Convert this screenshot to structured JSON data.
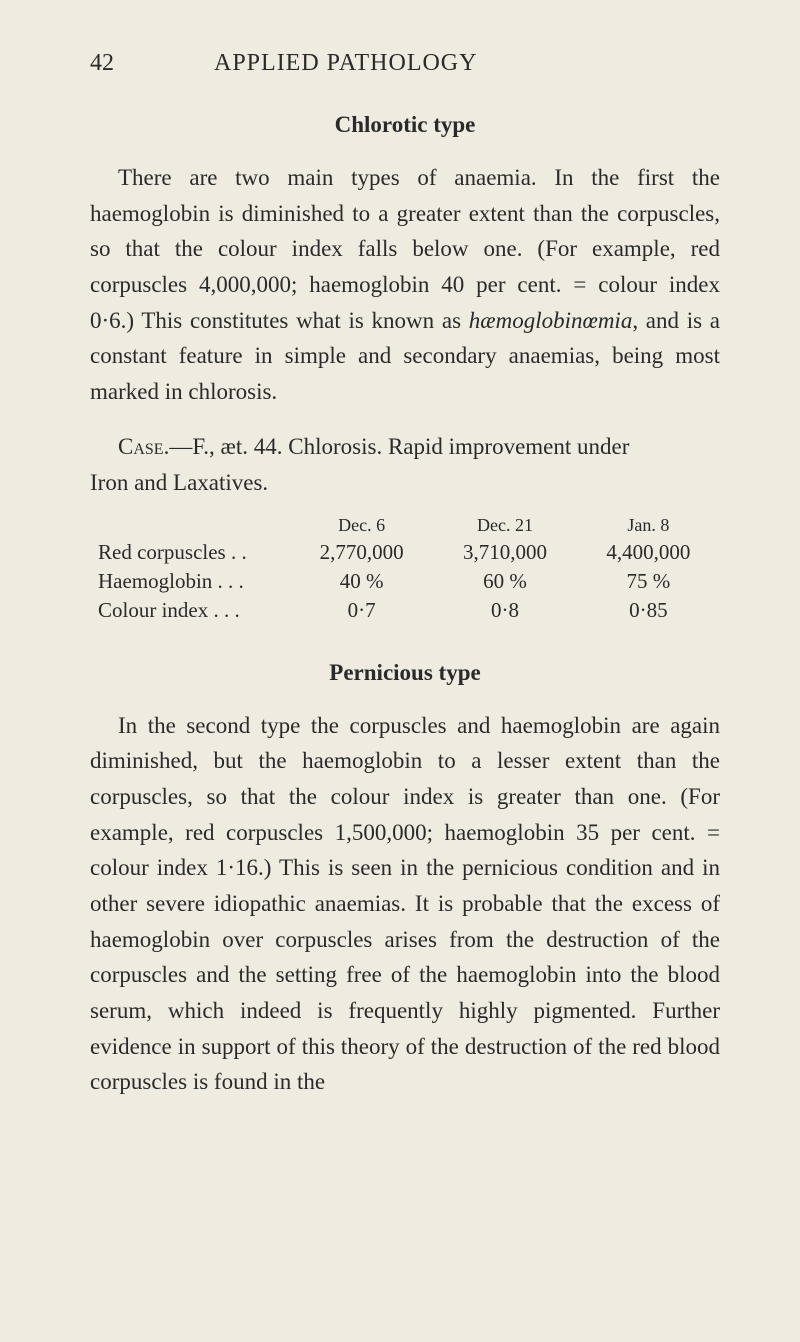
{
  "page": {
    "number": "42",
    "running_title": "APPLIED PATHOLOGY"
  },
  "section1": {
    "title": "Chlorotic type",
    "paragraph": "There are two main types of anaemia. In the first the haemoglobin is diminished to a greater extent than the corpuscles, so that the colour index falls below one. (For example, red corpuscles 4,000,000; haemoglobin 40 per cent. = colour index 0·6.) This constitutes what is known as ",
    "italic_word": "hæmoglobinœmia",
    "paragraph_end": ", and is a constant feature in simple and secondary anaemias, being most marked in chlorosis."
  },
  "case": {
    "label": "Case.",
    "text": "—F., æt. 44. Chlorosis. Rapid improvement under",
    "line2": "Iron and Laxatives."
  },
  "table": {
    "headers": [
      "",
      "Dec. 6",
      "Dec. 21",
      "Jan. 8"
    ],
    "rows": [
      {
        "label": "Red corpuscles  .  .",
        "c1": "2,770,000",
        "c2": "3,710,000",
        "c3": "4,400,000"
      },
      {
        "label": "Haemoglobin  .  .  .",
        "c1": "40 %",
        "c2": "60 %",
        "c3": "75 %"
      },
      {
        "label": "Colour index  .  .  .",
        "c1": "0·7",
        "c2": "0·8",
        "c3": "0·85"
      }
    ]
  },
  "section2": {
    "title": "Pernicious type",
    "paragraph": "In the second type the corpuscles and haemoglobin are again diminished, but the haemoglobin to a lesser extent than the corpuscles, so that the colour index is greater than one. (For example, red corpuscles 1,500,000; haemoglobin 35 per cent. = colour index 1·16.) This is seen in the pernicious condition and in other severe idiopathic anaemias. It is probable that the excess of haemoglobin over corpuscles arises from the destruction of the corpuscles and the setting free of the haemoglobin into the blood serum, which indeed is frequently highly pigmented. Further evidence in support of this theory of the destruction of the red blood corpuscles is found in the"
  },
  "colors": {
    "background": "#f0ebe0",
    "text": "#2a2a2a"
  }
}
